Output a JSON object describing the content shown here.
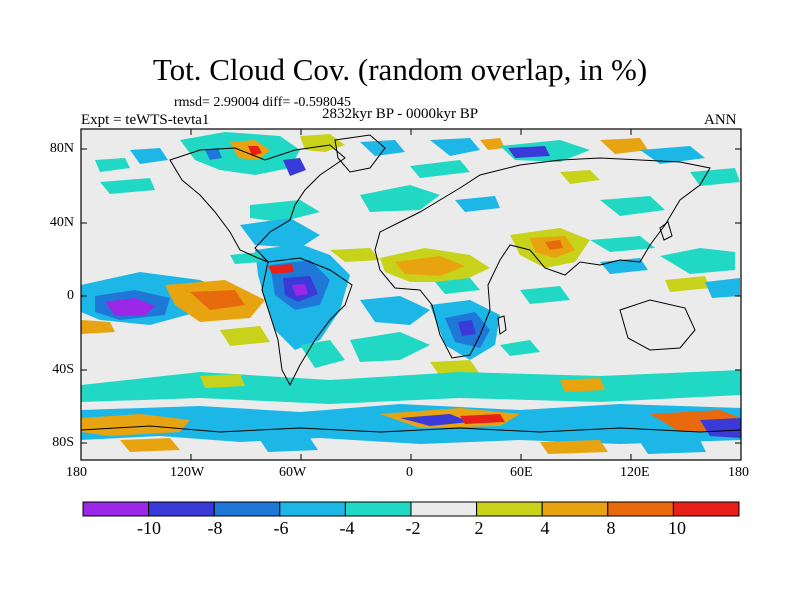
{
  "header": {
    "title": "Tot. Cloud Cov. (random overlap, in %)",
    "stats": "rmsd= 2.99004 diff= -0.598045",
    "period": "2832kyr BP - 0000kyr BP",
    "experiment": "Expt = teWTS-tevta1",
    "season": "ANN"
  },
  "axes": {
    "x_ticks": [
      "180",
      "120W",
      "60W",
      "0",
      "60E",
      "120E",
      "180"
    ],
    "y_ticks": [
      "80N",
      "40N",
      "0",
      "40S",
      "80S"
    ]
  },
  "colorbar": {
    "labels": [
      "-10",
      "-8",
      "-6",
      "-4",
      "-2",
      "2",
      "4",
      "8",
      "10"
    ],
    "colors": [
      "#9c27e6",
      "#3a3ad8",
      "#1f78d8",
      "#1cb7e6",
      "#20d8c4",
      "#ebebeb",
      "#c8d21a",
      "#e8a410",
      "#e86a0c",
      "#e8201a"
    ]
  },
  "palette": {
    "background": "#ebebeb",
    "frame": "#000000",
    "coast": "#000000"
  }
}
